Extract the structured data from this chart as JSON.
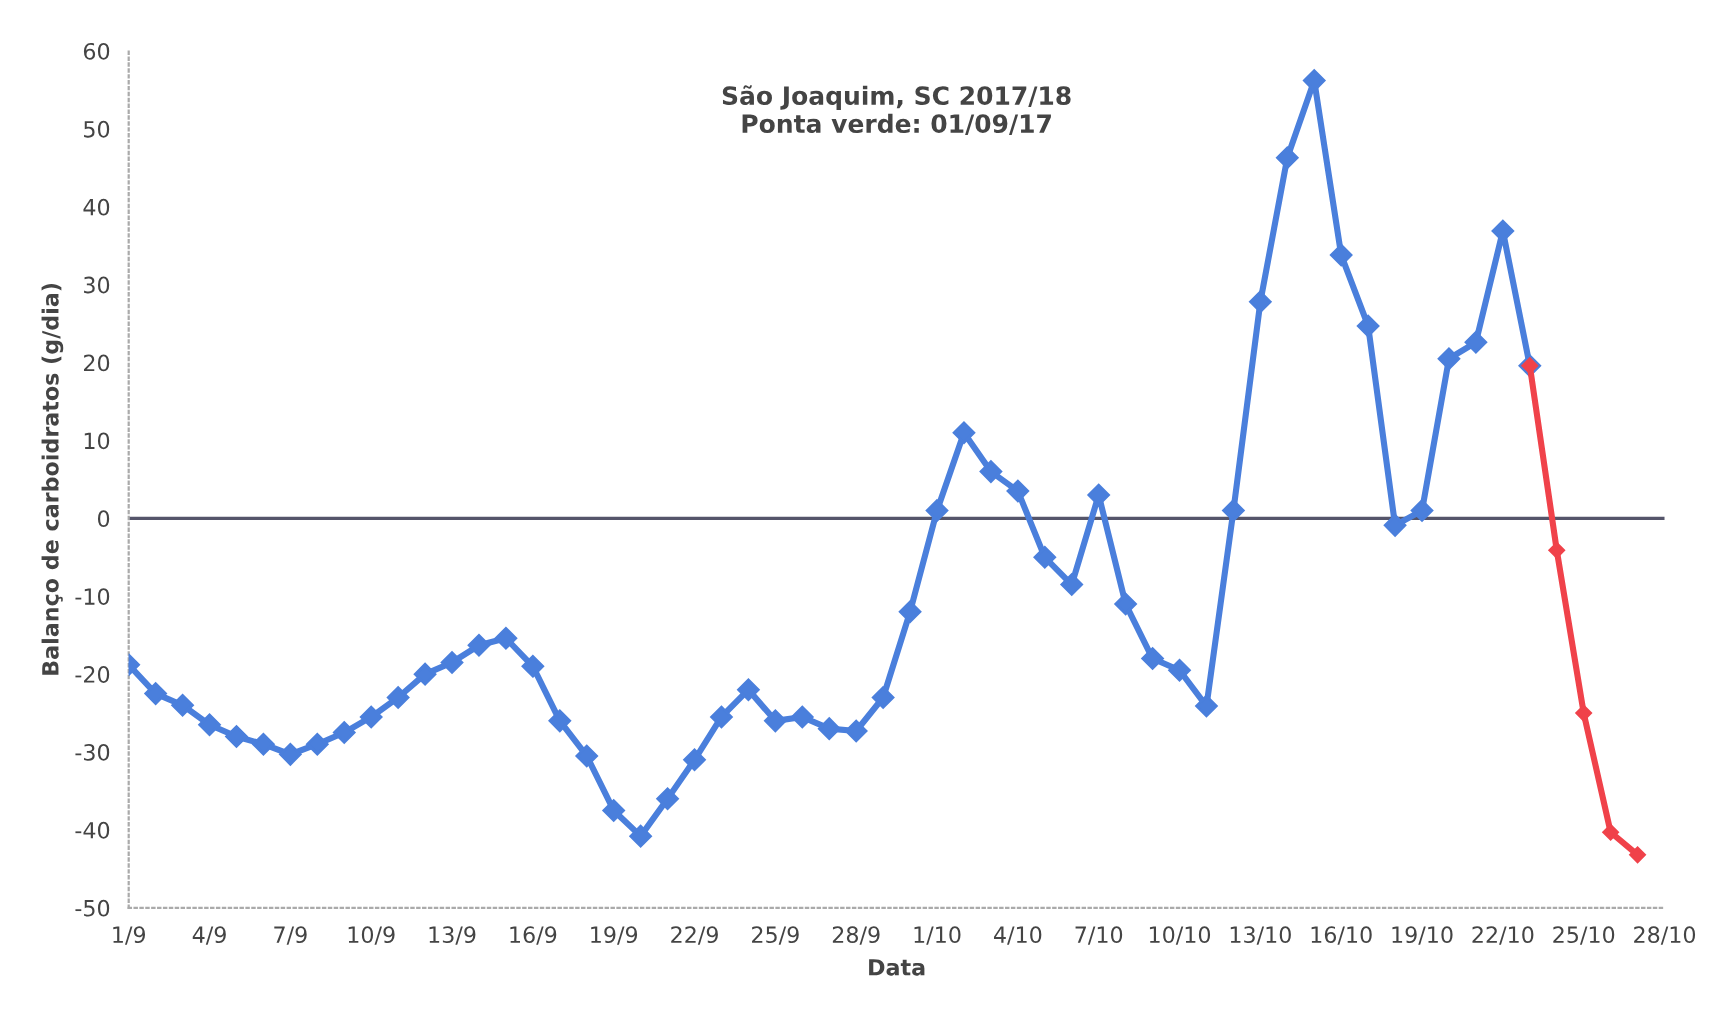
{
  "chart_data": {
    "type": "line",
    "title": "São Joaquim, SC 2017/18\nPonta verde: 01/09/17",
    "xlabel": "Data",
    "ylabel": "Balanço de carboidratos (g/dia)",
    "categories": [
      "1/9",
      null,
      null,
      "4/9",
      null,
      null,
      "7/9",
      null,
      null,
      "10/9",
      null,
      null,
      "13/9",
      null,
      null,
      "16/9",
      null,
      null,
      "19/9",
      null,
      null,
      "22/9",
      null,
      null,
      "25/9",
      null,
      null,
      "28/9",
      null,
      null,
      "1/10",
      null,
      null,
      "4/10",
      null,
      null,
      "7/10",
      null,
      null,
      "10/10",
      null,
      null,
      "13/10",
      null,
      null,
      "16/10",
      null,
      null,
      "19/10",
      null,
      null,
      "22/10",
      null,
      null,
      "25/10",
      null,
      null,
      "28/10"
    ],
    "series": [
      {
        "color": "#4a7fdc",
        "values": [
          -18.8,
          -22.5,
          -24,
          -26.5,
          -28,
          -29,
          -30.3,
          -29,
          -27.5,
          -25.5,
          -23,
          -20,
          -18.5,
          -16.3,
          -15.4,
          -19,
          -26,
          -30.5,
          -37.5,
          -40.8,
          -36,
          -31,
          -25.5,
          -22,
          -26,
          -25.5,
          -27,
          -27.3,
          -23,
          -12,
          1,
          11,
          6,
          3.5,
          -5,
          -8.5,
          3,
          -11,
          -18,
          -19.5,
          -24.1,
          1,
          27.8,
          46.3,
          56.2,
          33.8,
          24.7,
          -0.9,
          1,
          20.5,
          22.6,
          36.9,
          19.6,
          null,
          null,
          null,
          null,
          null
        ]
      },
      {
        "color": "#f0424a",
        "values": [
          null,
          null,
          null,
          null,
          null,
          null,
          null,
          null,
          null,
          null,
          null,
          null,
          null,
          null,
          null,
          null,
          null,
          null,
          null,
          null,
          null,
          null,
          null,
          null,
          null,
          null,
          null,
          null,
          null,
          null,
          null,
          null,
          null,
          null,
          null,
          null,
          null,
          null,
          null,
          null,
          null,
          null,
          null,
          null,
          null,
          null,
          null,
          null,
          null,
          null,
          null,
          null,
          19.6,
          -4.1,
          -25,
          -40.3,
          -43.2,
          null
        ]
      }
    ],
    "ylim": [
      -50,
      60
    ],
    "yticks": [
      -50,
      -40,
      -30,
      -20,
      -10,
      0,
      10,
      20,
      30,
      40,
      50,
      60
    ],
    "ref_lines": [
      {
        "axis": "y",
        "value": 0,
        "color": "#55556a"
      }
    ],
    "marker": "diamond",
    "line_style": "solid"
  }
}
